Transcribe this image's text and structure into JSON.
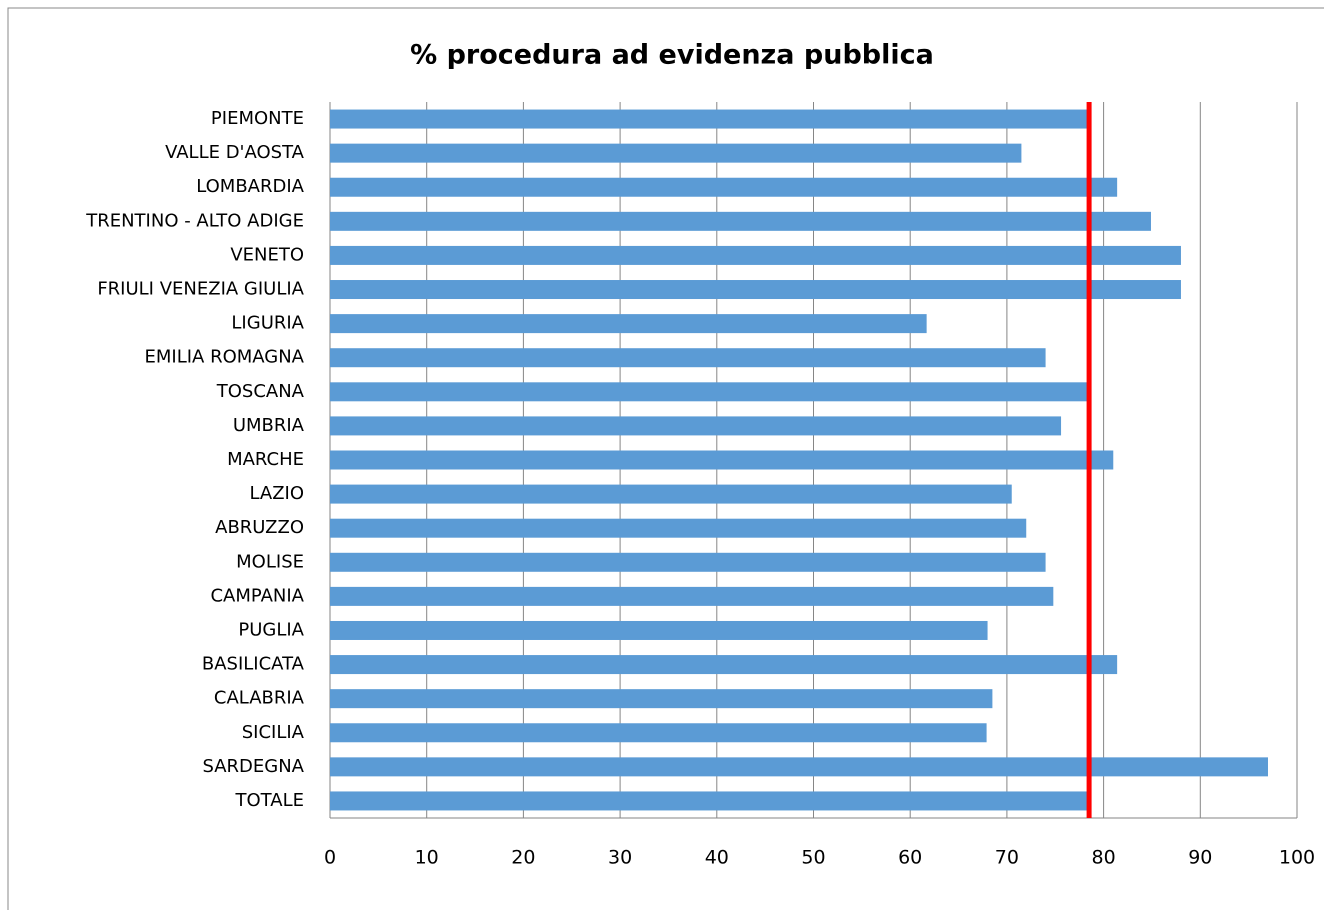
{
  "chart_data": {
    "type": "bar",
    "orientation": "horizontal",
    "title": "% procedura ad evidenza pubblica",
    "categories": [
      "PIEMONTE",
      "VALLE D'AOSTA",
      "LOMBARDIA",
      "TRENTINO - ALTO ADIGE",
      "VENETO",
      "FRIULI VENEZIA GIULIA",
      "LIGURIA",
      "EMILIA ROMAGNA",
      "TOSCANA",
      "UMBRIA",
      "MARCHE",
      "LAZIO",
      "ABRUZZO",
      "MOLISE",
      "CAMPANIA",
      "PUGLIA",
      "BASILICATA",
      "CALABRIA",
      "SICILIA",
      "SARDEGNA",
      "TOTALE"
    ],
    "values": [
      78.4,
      71.5,
      81.4,
      84.9,
      88.0,
      88.0,
      61.7,
      74.0,
      78.4,
      75.6,
      81.0,
      70.5,
      72.0,
      74.0,
      74.8,
      68.0,
      81.4,
      68.5,
      67.9,
      97.0,
      78.4
    ],
    "color": "#5b9bd5",
    "reference_line": 78.5,
    "reference_color": "#ff0000",
    "xlim": [
      0,
      100
    ],
    "xticks": [
      0,
      10,
      20,
      30,
      40,
      50,
      60,
      70,
      80,
      90,
      100
    ],
    "grid": true
  }
}
